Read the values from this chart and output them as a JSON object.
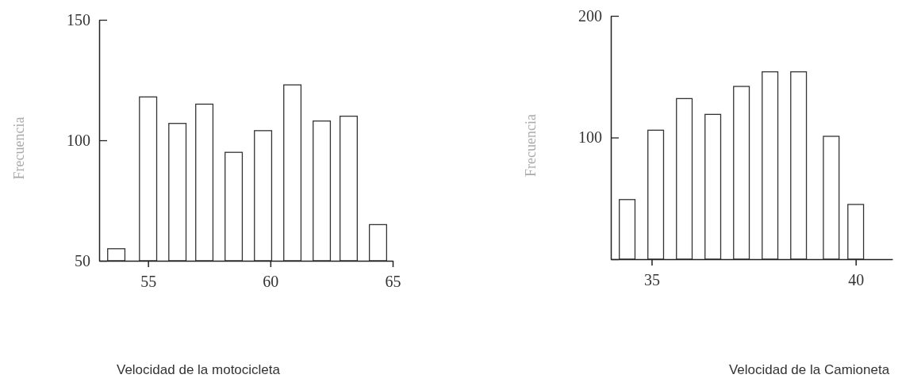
{
  "chart_data": [
    {
      "type": "bar",
      "ylabel": "Frecuencia",
      "xlabel": "Velocidad de la motocicleta",
      "x": [
        53.7,
        55.0,
        56.2,
        57.3,
        58.5,
        59.7,
        60.9,
        62.1,
        63.2,
        64.4
      ],
      "values": [
        55,
        118,
        107,
        115,
        95,
        104,
        123,
        108,
        110,
        65
      ],
      "color": "#ffffff",
      "xlim": [
        53,
        65
      ],
      "xticks": [
        55,
        60,
        65
      ],
      "ylim": [
        50,
        150
      ],
      "yticks": [
        50,
        100,
        150
      ]
    },
    {
      "type": "bar",
      "ylabel": "Frecuencia",
      "xlabel": "Velocidad de la Camioneta",
      "x": [
        34.4,
        35.1,
        35.8,
        36.5,
        37.2,
        37.9,
        38.6,
        39.4,
        40.0
      ],
      "values": [
        49,
        106,
        132,
        119,
        142,
        154,
        154,
        101,
        45
      ],
      "color": "#ffffff",
      "xlim": [
        34,
        40.9
      ],
      "xticks": [
        35,
        40
      ],
      "ylim": [
        0,
        200
      ],
      "yticks": [
        {
          "value": 0,
          "label": null
        },
        100,
        200
      ]
    }
  ]
}
